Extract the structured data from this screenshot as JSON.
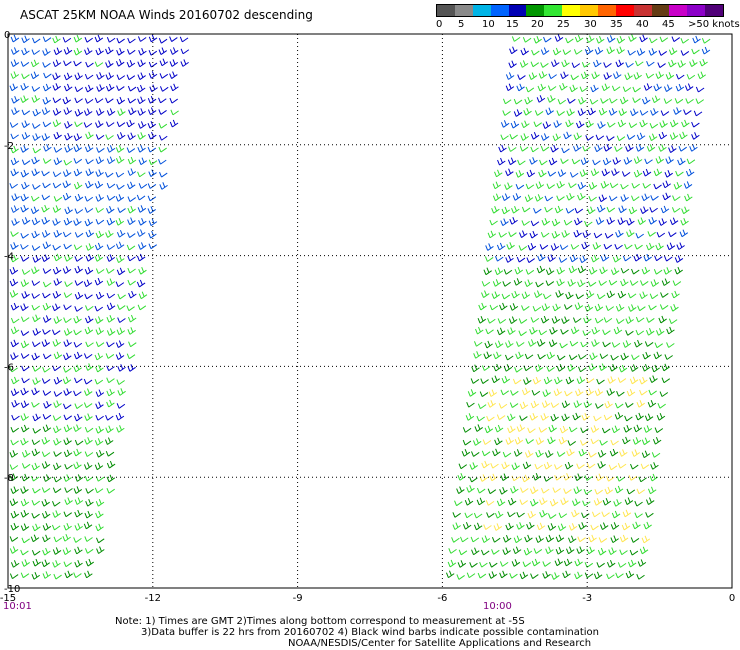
{
  "title": "ASCAT 25KM NOAA Winds 20160702 descending",
  "legend": {
    "colors": [
      "#555555",
      "#8a8a8a",
      "#00b4e6",
      "#0064ff",
      "#0000b4",
      "#009600",
      "#32e632",
      "#ffff00",
      "#ffc800",
      "#ff6400",
      "#ff0000",
      "#c83232",
      "#643c14",
      "#c800c8",
      "#8c00c8",
      "#500078"
    ],
    "tick_labels": [
      "0",
      "5",
      "10",
      "15",
      "20",
      "25",
      "30",
      "35",
      "40",
      "45",
      ">50 knots"
    ],
    "units": "knots"
  },
  "map": {
    "x_ticks": [
      -15,
      -12,
      -9,
      -6,
      -3,
      0
    ],
    "x_tick_labels": [
      "-15",
      "-12",
      "-9",
      "-6",
      "-3",
      "0"
    ],
    "y_ticks": [
      0,
      -2,
      -4,
      -6,
      -8,
      -10
    ],
    "y_tick_labels": [
      "0",
      "-2",
      "-4",
      "-6",
      "-8",
      "-10"
    ],
    "lon_range": [
      -15,
      0
    ],
    "lat_range": [
      -10,
      0
    ],
    "grid": true,
    "pass_times": [
      "10:01",
      "10:00"
    ],
    "swaths": [
      {
        "name": "west",
        "lon_top": [
          -15,
          -11.2
        ],
        "lon_bottom": [
          -15,
          -13.2
        ],
        "dominant_speed_knots": [
          10,
          20
        ]
      },
      {
        "name": "east",
        "lon_top": [
          -4.6,
          -0.4
        ],
        "lon_bottom": [
          -6.0,
          -1.8
        ],
        "dominant_speed_knots": [
          15,
          25
        ]
      }
    ]
  },
  "notes": {
    "line1": "Note: 1) Times are GMT 2)Times along bottom correspond to measurement at -5S",
    "line2": "3)Data buffer is 22 hrs from 20160702 4) Black wind barbs indicate possible contamination",
    "line3": "NOAA/NESDIS/Center for Satellite Applications and Research"
  },
  "colors": {
    "time_label": "#800080",
    "grid": "#000000"
  }
}
